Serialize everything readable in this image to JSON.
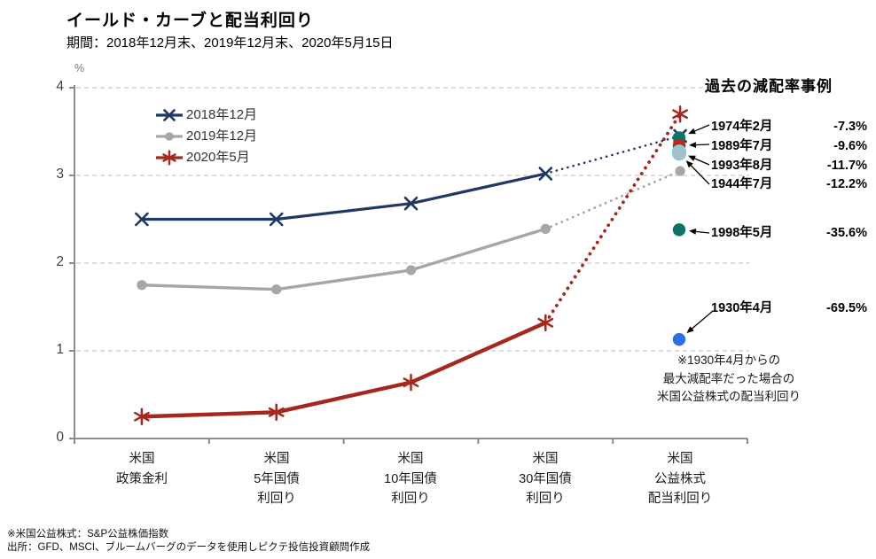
{
  "page": {
    "title": "イールド・カーブと配当利回り",
    "subtitle": "期間：2018年12月末、2019年12月末、2020年5月15日"
  },
  "chart_data": {
    "type": "line",
    "unit": "%",
    "ylim": [
      0,
      4
    ],
    "yticks": [
      "0",
      "1",
      "2",
      "3",
      "4"
    ],
    "grid": "horizontal-dashed",
    "legend_position": "top-left-inside",
    "categories": [
      {
        "lines": [
          "米国",
          "政策金利"
        ]
      },
      {
        "lines": [
          "米国",
          "5年国債",
          "利回り"
        ]
      },
      {
        "lines": [
          "米国",
          "10年国債",
          "利回り"
        ]
      },
      {
        "lines": [
          "米国",
          "30年国債",
          "利回り"
        ]
      },
      {
        "lines": [
          "米国",
          "公益株式",
          "配当利回り"
        ]
      }
    ],
    "series": [
      {
        "name": "2018年12月",
        "color": "#1F3864",
        "marker": "x",
        "width": 3.2,
        "values": [
          2.5,
          2.5,
          2.68,
          3.02,
          3.45
        ],
        "last_segment": "dotted"
      },
      {
        "name": "2019年12月",
        "color": "#A6A6A6",
        "marker": "circle",
        "width": 3.4,
        "values": [
          1.75,
          1.7,
          1.92,
          2.39,
          3.05
        ],
        "last_segment": "dotted"
      },
      {
        "name": "2020年5月",
        "color": "#A5281E",
        "marker": "asterisk",
        "width": 4.4,
        "values": [
          0.25,
          0.3,
          0.64,
          1.32,
          3.7
        ],
        "last_segment": "dotted"
      }
    ],
    "annotations": {
      "header": "過去の減配率事例",
      "events": [
        {
          "date": "1974年2月",
          "pct": "-7.3%",
          "yield_value": 3.43,
          "dot_color": "#0E7468"
        },
        {
          "date": "1989年7月",
          "pct": "-9.6%",
          "yield_value": 3.34,
          "dot_color": "#C0241C"
        },
        {
          "date": "1993年8月",
          "pct": "-11.7%",
          "yield_value": 3.27,
          "dot_color": "#A9BFC4",
          "dot_border": "#7FD2D6"
        },
        {
          "date": "1944年7月",
          "pct": "-12.2%",
          "yield_value": 3.25,
          "dot_color": "#A9BFC4",
          "dot_border": "#7FD2D6"
        },
        {
          "date": "1998年5月",
          "pct": "-35.6%",
          "yield_value": 2.38,
          "dot_color": "#0E7468"
        },
        {
          "date": "1930年4月",
          "pct": "-69.5%",
          "yield_value": 1.13,
          "dot_color": "#2E6FE8"
        }
      ],
      "note_lines": [
        "※1930年4月からの",
        "最大減配率だった場合の",
        "米国公益株式の配当利回り"
      ]
    }
  },
  "footnotes": [
    "※米国公益株式：S&P公益株価指数",
    "出所：GFD、MSCI、ブルームバーグのデータを使用しピクテ投信投資顧問作成"
  ]
}
